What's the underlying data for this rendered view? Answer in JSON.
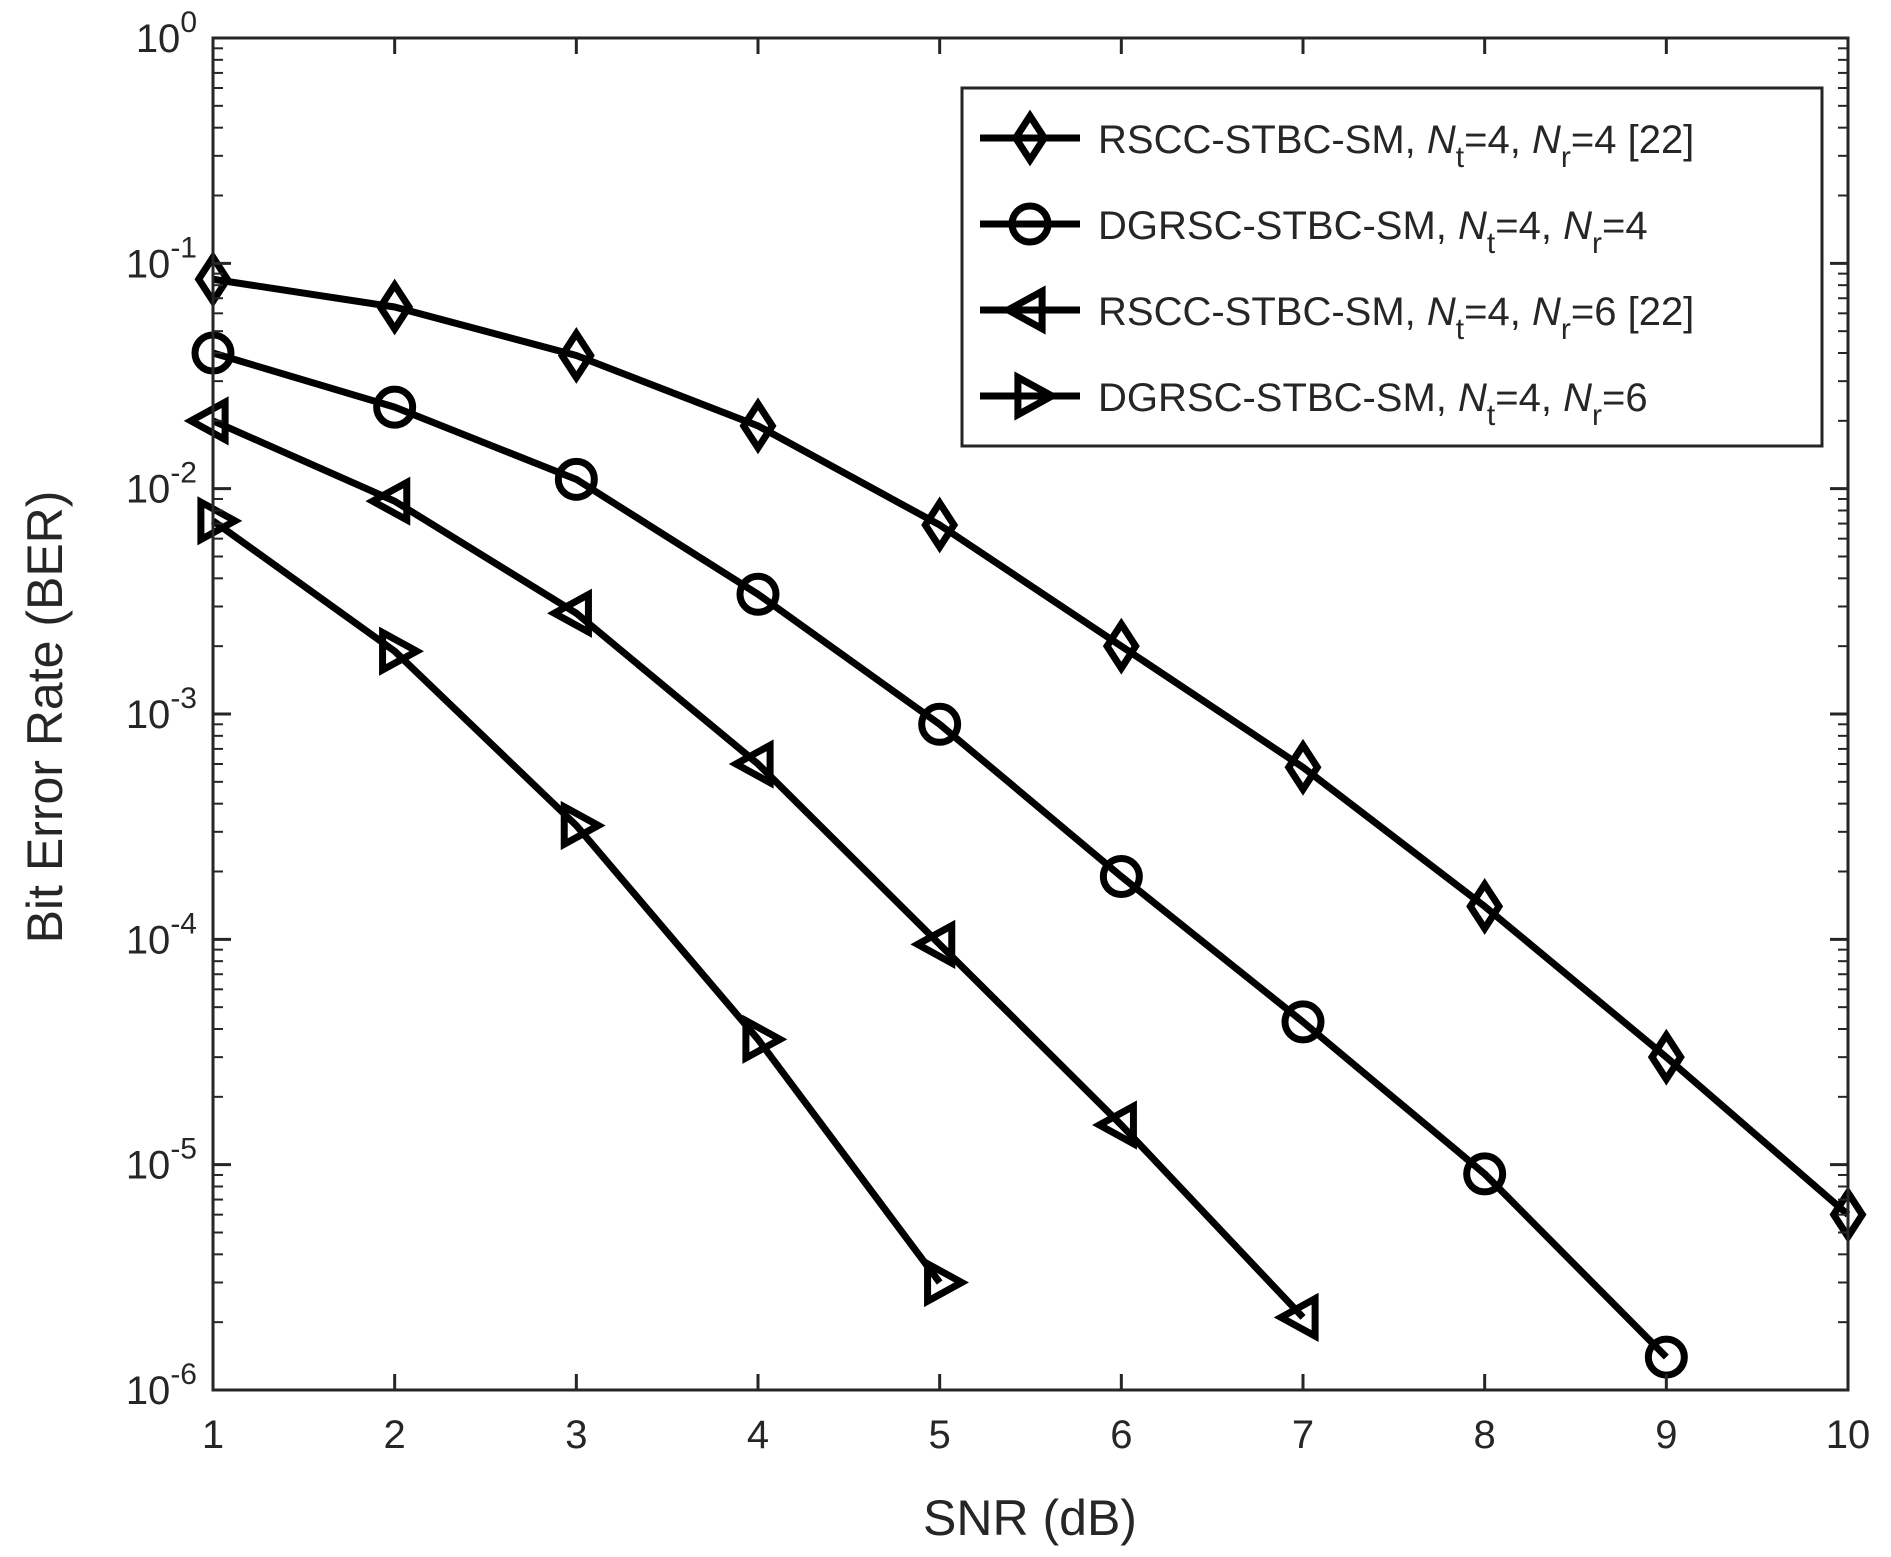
{
  "chart_data": {
    "type": "line",
    "x": [
      1,
      2,
      3,
      4,
      5,
      6,
      7,
      8,
      9,
      10
    ],
    "xlabel": "SNR (dB)",
    "ylabel": "Bit Error Rate (BER)",
    "xlim": [
      1,
      10
    ],
    "ylim": [
      1e-06,
      1
    ],
    "yscale": "log",
    "x_ticks": [
      "1",
      "2",
      "3",
      "4",
      "5",
      "6",
      "7",
      "8",
      "9",
      "10"
    ],
    "y_ticks": [
      {
        "base": "10",
        "exp": "-6"
      },
      {
        "base": "10",
        "exp": "-5"
      },
      {
        "base": "10",
        "exp": "-4"
      },
      {
        "base": "10",
        "exp": "-3"
      },
      {
        "base": "10",
        "exp": "-2"
      },
      {
        "base": "10",
        "exp": "-1"
      },
      {
        "base": "10",
        "exp": "0"
      }
    ],
    "grid": false,
    "legend_position": "top-right",
    "line_color": "#000000",
    "series": [
      {
        "label_parts": [
          {
            "t": "RSCC-STBC-SM, "
          },
          {
            "t": "N",
            "i": true
          },
          {
            "t": "t",
            "sub": true
          },
          {
            "t": "=4, "
          },
          {
            "t": "N",
            "i": true
          },
          {
            "t": "r",
            "sub": true
          },
          {
            "t": "=4 [22]"
          }
        ],
        "marker": "diamond",
        "x": [
          1,
          2,
          3,
          4,
          5,
          6,
          7,
          8,
          9,
          10
        ],
        "values": [
          0.085,
          0.064,
          0.039,
          0.019,
          0.0069,
          0.002,
          0.00058,
          0.00014,
          3e-05,
          6e-06
        ]
      },
      {
        "label_parts": [
          {
            "t": "DGRSC-STBC-SM, "
          },
          {
            "t": "N",
            "i": true
          },
          {
            "t": "t",
            "sub": true
          },
          {
            "t": "=4, "
          },
          {
            "t": "N",
            "i": true
          },
          {
            "t": "r",
            "sub": true
          },
          {
            "t": "=4"
          }
        ],
        "marker": "circle",
        "x": [
          1,
          2,
          3,
          4,
          5,
          6,
          7,
          8,
          9
        ],
        "values": [
          0.04,
          0.023,
          0.011,
          0.0034,
          0.0009,
          0.00019,
          4.3e-05,
          9.1e-06,
          1.4e-06
        ]
      },
      {
        "label_parts": [
          {
            "t": "RSCC-STBC-SM, "
          },
          {
            "t": "N",
            "i": true
          },
          {
            "t": "t",
            "sub": true
          },
          {
            "t": "=4, "
          },
          {
            "t": "N",
            "i": true
          },
          {
            "t": "r",
            "sub": true
          },
          {
            "t": "=6 [22]"
          }
        ],
        "marker": "triangle-left",
        "x": [
          1,
          2,
          3,
          4,
          5,
          6,
          7
        ],
        "values": [
          0.02,
          0.0088,
          0.0028,
          0.0006,
          9.5e-05,
          1.5e-05,
          2.1e-06
        ]
      },
      {
        "label_parts": [
          {
            "t": "DGRSC-STBC-SM, "
          },
          {
            "t": "N",
            "i": true
          },
          {
            "t": "t",
            "sub": true
          },
          {
            "t": "=4, "
          },
          {
            "t": "N",
            "i": true
          },
          {
            "t": "r",
            "sub": true
          },
          {
            "t": "=6"
          }
        ],
        "marker": "triangle-right",
        "x": [
          1,
          2,
          3,
          4,
          5
        ],
        "values": [
          0.0072,
          0.0019,
          0.00032,
          3.6e-05,
          3e-06
        ]
      }
    ]
  }
}
